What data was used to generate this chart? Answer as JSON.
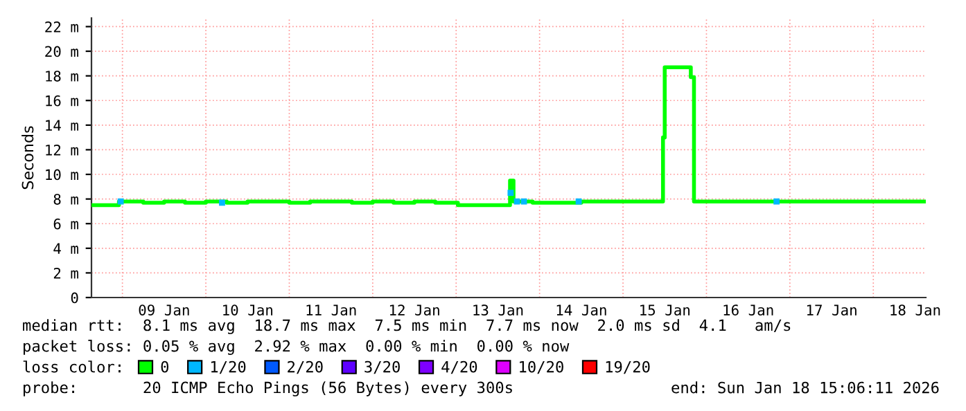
{
  "chart_data": {
    "type": "step",
    "ylabel": "Seconds",
    "legend_title": "loss color:",
    "legend": "bottom",
    "grid": true,
    "xlim": [
      "2026-01-08T15:06",
      "2026-01-18T15:06"
    ],
    "xticks": [
      {
        "value": "2026-01-09T00:00",
        "label": null
      },
      {
        "value": "2026-01-09T12:00",
        "label": "09 Jan"
      },
      {
        "value": "2026-01-10T00:00",
        "label": null
      },
      {
        "value": "2026-01-10T12:00",
        "label": "10 Jan"
      },
      {
        "value": "2026-01-11T00:00",
        "label": null
      },
      {
        "value": "2026-01-11T12:00",
        "label": "11 Jan"
      },
      {
        "value": "2026-01-12T00:00",
        "label": null
      },
      {
        "value": "2026-01-12T12:00",
        "label": "12 Jan"
      },
      {
        "value": "2026-01-13T00:00",
        "label": null
      },
      {
        "value": "2026-01-13T12:00",
        "label": "13 Jan"
      },
      {
        "value": "2026-01-14T00:00",
        "label": null
      },
      {
        "value": "2026-01-14T12:00",
        "label": "14 Jan"
      },
      {
        "value": "2026-01-15T00:00",
        "label": null
      },
      {
        "value": "2026-01-15T12:00",
        "label": "15 Jan"
      },
      {
        "value": "2026-01-16T00:00",
        "label": null
      },
      {
        "value": "2026-01-16T12:00",
        "label": "16 Jan"
      },
      {
        "value": "2026-01-17T00:00",
        "label": null
      },
      {
        "value": "2026-01-17T12:00",
        "label": "17 Jan"
      },
      {
        "value": "2026-01-18T00:00",
        "label": null
      },
      {
        "value": "2026-01-18T12:00",
        "label": "18 Jan"
      }
    ],
    "ylim": [
      0,
      22.7
    ],
    "yticks": [
      0,
      {
        "value": 2,
        "label": "2 m"
      },
      {
        "value": 4,
        "label": "4 m"
      },
      {
        "value": 6,
        "label": "6 m"
      },
      {
        "value": 8,
        "label": "8 m"
      },
      {
        "value": 10,
        "label": "10 m"
      },
      {
        "value": 12,
        "label": "12 m"
      },
      {
        "value": 14,
        "label": "14 m"
      },
      {
        "value": 16,
        "label": "16 m"
      },
      {
        "value": 18,
        "label": "18 m"
      },
      {
        "value": 20,
        "label": "20 m"
      },
      {
        "value": 22,
        "label": "22 m"
      }
    ],
    "x": [
      "2026-01-08T15:06",
      "2026-01-08T23:00",
      "2026-01-09T06:00",
      "2026-01-09T12:00",
      "2026-01-09T18:00",
      "2026-01-10T00:00",
      "2026-01-10T06:00",
      "2026-01-10T12:00",
      "2026-01-10T18:00",
      "2026-01-11T00:00",
      "2026-01-11T06:00",
      "2026-01-11T12:00",
      "2026-01-11T18:00",
      "2026-01-12T00:00",
      "2026-01-12T06:00",
      "2026-01-12T12:00",
      "2026-01-12T18:00",
      "2026-01-13T00:30",
      "2026-01-13T06:00",
      "2026-01-13T12:00",
      "2026-01-13T15:30",
      "2026-01-13T16:30",
      "2026-01-13T22:00",
      "2026-01-14T06:00",
      "2026-01-14T12:00",
      "2026-01-14T18:00",
      "2026-01-15T00:00",
      "2026-01-15T06:00",
      "2026-01-15T11:30",
      "2026-01-15T12:00",
      "2026-01-15T19:30",
      "2026-01-15T20:25",
      "2026-01-16T00:00",
      "2026-01-16T06:00",
      "2026-01-16T12:00",
      "2026-01-16T18:00",
      "2026-01-17T00:00",
      "2026-01-17T06:00",
      "2026-01-17T12:00",
      "2026-01-17T18:00",
      "2026-01-18T00:00",
      "2026-01-18T06:00",
      "2026-01-18T15:06"
    ],
    "series": [
      {
        "name": "0",
        "color": "#00ff00",
        "values": [
          7.5,
          7.8,
          7.7,
          7.8,
          7.7,
          7.8,
          7.7,
          7.8,
          7.8,
          7.7,
          7.8,
          7.8,
          7.7,
          7.8,
          7.7,
          7.8,
          7.7,
          7.5,
          7.5,
          7.5,
          9.5,
          7.8,
          7.7,
          7.7,
          7.8,
          7.8,
          7.8,
          7.8,
          13.0,
          18.7,
          17.9,
          7.8,
          7.8,
          7.8,
          7.8,
          7.8,
          7.8,
          7.8,
          7.8,
          7.8,
          7.8,
          7.8,
          7.8
        ]
      },
      {
        "name": "1/20",
        "color": "#00b8ff",
        "type": "scatter",
        "x": [
          "2026-01-08T23:30",
          "2026-01-10T04:40",
          "2026-01-13T15:40",
          "2026-01-13T17:30",
          "2026-01-13T19:30",
          "2026-01-14T11:15",
          "2026-01-16T20:10"
        ],
        "values": [
          7.8,
          7.7,
          8.5,
          7.8,
          7.8,
          7.8,
          7.8
        ]
      },
      {
        "name": "2/20",
        "color": "#0059ff",
        "type": "scatter",
        "values": [
          null,
          null,
          null,
          null,
          null,
          null,
          null,
          null,
          null,
          null,
          null,
          null,
          null,
          null,
          null,
          null,
          null,
          null,
          null,
          null,
          null,
          null,
          null,
          null,
          null,
          null,
          null,
          null,
          null,
          null,
          null,
          null,
          null,
          null,
          null,
          null,
          null,
          null,
          null,
          null,
          null,
          null,
          null
        ]
      },
      {
        "name": "3/20",
        "color": "#5e00ff",
        "type": "scatter",
        "values": [
          null,
          null,
          null,
          null,
          null,
          null,
          null,
          null,
          null,
          null,
          null,
          null,
          null,
          null,
          null,
          null,
          null,
          null,
          null,
          null,
          null,
          null,
          null,
          null,
          null,
          null,
          null,
          null,
          null,
          null,
          null,
          null,
          null,
          null,
          null,
          null,
          null,
          null,
          null,
          null,
          null,
          null,
          null
        ]
      },
      {
        "name": "4/20",
        "color": "#7e00ff",
        "type": "scatter",
        "values": [
          null,
          null,
          null,
          null,
          null,
          null,
          null,
          null,
          null,
          null,
          null,
          null,
          null,
          null,
          null,
          null,
          null,
          null,
          null,
          null,
          null,
          null,
          null,
          null,
          null,
          null,
          null,
          null,
          null,
          null,
          null,
          null,
          null,
          null,
          null,
          null,
          null,
          null,
          null,
          null,
          null,
          null,
          null
        ]
      },
      {
        "name": "10/20",
        "color": "#dd00ff",
        "type": "scatter",
        "values": [
          null,
          null,
          null,
          null,
          null,
          null,
          null,
          null,
          null,
          null,
          null,
          null,
          null,
          null,
          null,
          null,
          null,
          null,
          null,
          null,
          null,
          null,
          null,
          null,
          null,
          null,
          null,
          null,
          null,
          null,
          null,
          null,
          null,
          null,
          null,
          null,
          null,
          null,
          null,
          null,
          null,
          null,
          null
        ]
      },
      {
        "name": "19/20",
        "color": "#ff0000",
        "type": "scatter",
        "values": [
          null,
          null,
          null,
          null,
          null,
          null,
          null,
          null,
          null,
          null,
          null,
          null,
          null,
          null,
          null,
          null,
          null,
          null,
          null,
          null,
          null,
          null,
          null,
          null,
          null,
          null,
          null,
          null,
          null,
          null,
          null,
          null,
          null,
          null,
          null,
          null,
          null,
          null,
          null,
          null,
          null,
          null,
          null
        ]
      }
    ],
    "annotations": [
      "median rtt:  8.1 ms avg  18.7 ms max  7.5 ms min  7.7 ms now  2.0 ms sd  4.1   am/s",
      "packet loss: 0.05 % avg  2.92 % max  0.00 % min  0.00 % now",
      "probe:       20 ICMP Echo Pings (56 Bytes) every 300s",
      "end: Sun Jan 18 15:06:11 2026"
    ]
  }
}
